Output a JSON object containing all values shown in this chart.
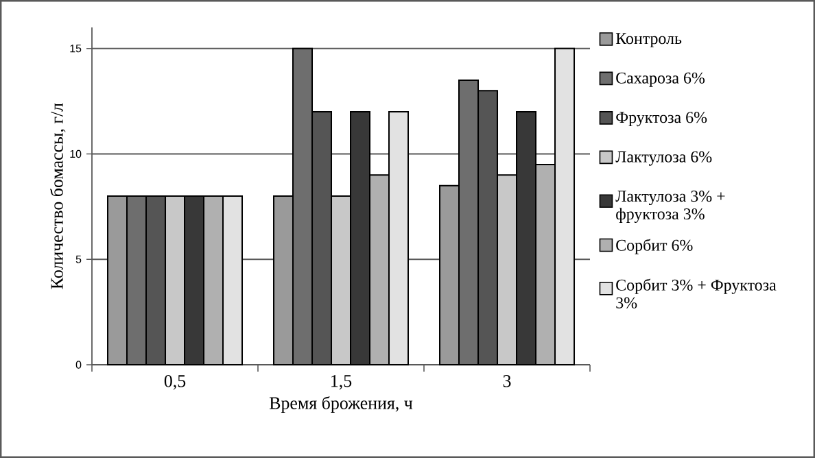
{
  "chart_data": {
    "type": "bar",
    "xlabel": "Время брожения, ч",
    "ylabel": "Количество бомассы, г/л",
    "categories": [
      "0,5",
      "1,5",
      "3"
    ],
    "series": [
      {
        "name": "Контроль",
        "color": "#9a9a9a",
        "values": [
          8,
          8,
          8.5
        ]
      },
      {
        "name": "Сахароза 6%",
        "color": "#6e6e6e",
        "values": [
          8,
          15,
          13.5
        ]
      },
      {
        "name": "Фруктоза 6%",
        "color": "#555555",
        "values": [
          8,
          12,
          13
        ]
      },
      {
        "name": "Лактулоза 6%",
        "color": "#c8c8c8",
        "values": [
          8,
          8,
          9
        ]
      },
      {
        "name": "Лактулоза 3% + фруктоза 3%",
        "color": "#383838",
        "values": [
          8,
          12,
          12
        ]
      },
      {
        "name": "Сорбит 6%",
        "color": "#b0b0b0",
        "values": [
          8,
          9,
          9.5
        ]
      },
      {
        "name": "Сорбит 3% + Фруктоза 3%",
        "color": "#e2e2e2",
        "values": [
          8,
          12,
          15
        ]
      }
    ],
    "ylim": [
      0,
      16
    ],
    "yticks": [
      0,
      5,
      10,
      15
    ],
    "grid": "y",
    "legend": "right"
  }
}
